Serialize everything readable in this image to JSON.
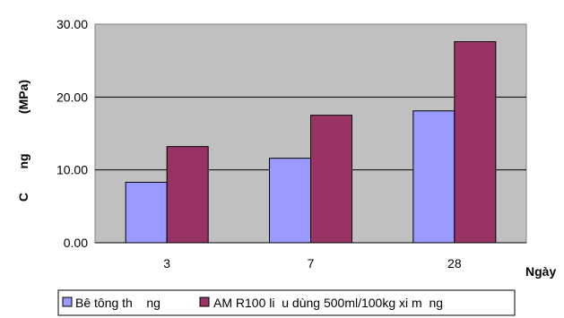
{
  "chart_data": {
    "type": "bar",
    "categories": [
      "3",
      "7",
      "28"
    ],
    "series": [
      {
        "name": "Bê tông th    ng",
        "values": [
          8.3,
          11.6,
          18.1
        ],
        "color": "#9999ff"
      },
      {
        "name": "AM R100 li  u dùng 500ml/100kg xi m  ng",
        "values": [
          13.2,
          17.5,
          27.6
        ],
        "color": "#993366"
      }
    ],
    "ylabel_left": "C",
    "ylabel_mid": "ng",
    "ylabel_unit": "(MPa)",
    "xlabel": "Ngày",
    "ylim": [
      0,
      30
    ],
    "yticks": [
      "0.00",
      "10.00",
      "20.00",
      "30.00"
    ],
    "plot_background": "#c0c0c0",
    "grid": true,
    "legend_position": "bottom"
  }
}
